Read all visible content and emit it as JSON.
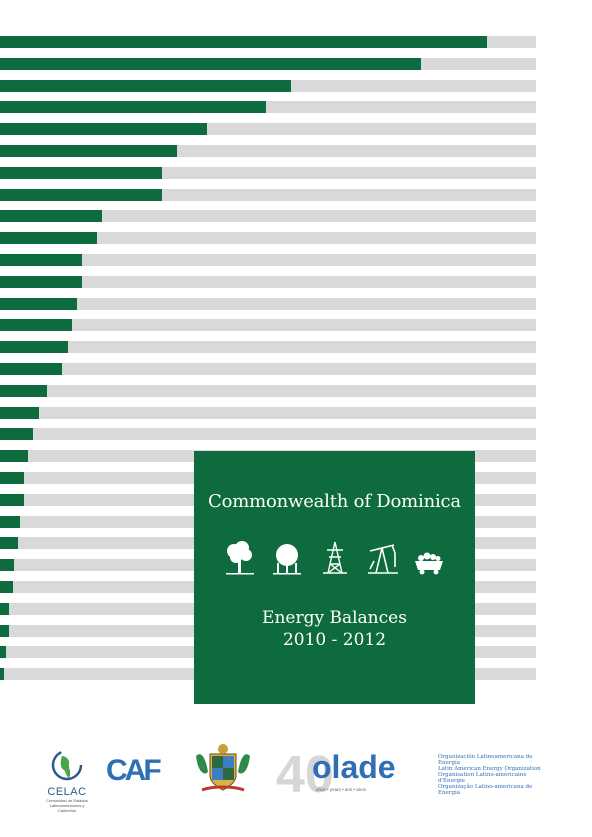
{
  "cover": {
    "country": "Commonwealth of Dominica",
    "title_line1": "Energy Balances",
    "title_line2": "2010 - 2012",
    "icons": [
      "tree-icon",
      "gas-tank-icon",
      "power-tower-icon",
      "oil-pump-icon",
      "coal-cart-icon"
    ]
  },
  "bars": [
    487,
    421,
    291,
    266,
    207,
    177,
    162,
    162,
    102,
    97,
    82,
    82,
    77,
    72,
    68,
    62,
    47,
    39,
    33,
    28,
    24,
    24,
    20,
    18,
    14,
    13,
    9,
    9,
    6,
    4
  ],
  "bar_max": 536,
  "logos": {
    "celac": "CELAC",
    "celac_sub": "Comunidad de Estados Latinoamericanos y Caribeños",
    "caf": "CAF",
    "olade_40": "40",
    "olade": "olade",
    "olade_years": "años • years • ans • anos",
    "olade_org_es": "Organización Latinoamericana de Energía",
    "olade_org_en": "Latin American Energy Organization",
    "olade_org_fr": "Organisation Latino-américaine d'Énergie",
    "olade_org_pt": "Organização Latino-americana de Energia"
  },
  "colors": {
    "green": "#0e6b3d",
    "gray": "#d9d9d9",
    "blue": "#2e6fb5"
  }
}
